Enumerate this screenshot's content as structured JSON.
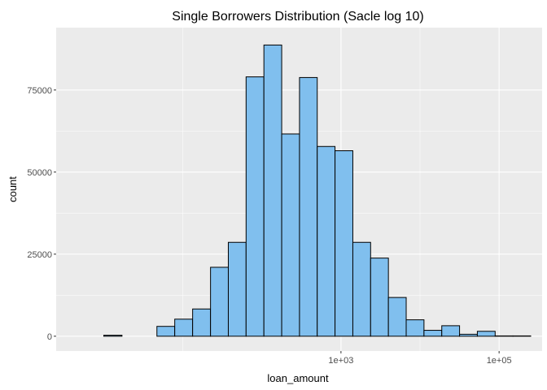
{
  "chart_data": {
    "type": "bar",
    "title": "Single Borrowers Distribution (Sacle log 10)",
    "xlabel": "loan_amount",
    "ylabel": "count",
    "x_scale": "log10",
    "xlim": [
      0.25,
      350000
    ],
    "ylim": [
      -4500,
      94000
    ],
    "grid": true,
    "x_ticks": [
      {
        "value": 1000,
        "label": "1e+03"
      },
      {
        "value": 100000,
        "label": "1e+05"
      }
    ],
    "y_ticks": [
      {
        "value": 0,
        "label": "0"
      },
      {
        "value": 25000,
        "label": "25000"
      },
      {
        "value": 50000,
        "label": "50000"
      },
      {
        "value": 75000,
        "label": "75000"
      }
    ],
    "bins": [
      {
        "x0": 1.0,
        "x1": 1.7,
        "count": 300
      },
      {
        "x0": 1.7,
        "x1": 2.8,
        "count": 0
      },
      {
        "x0": 2.8,
        "x1": 4.7,
        "count": 0
      },
      {
        "x0": 4.7,
        "x1": 7.9,
        "count": 3000
      },
      {
        "x0": 7.9,
        "x1": 13.3,
        "count": 5200
      },
      {
        "x0": 13.3,
        "x1": 22.4,
        "count": 8300
      },
      {
        "x0": 22.4,
        "x1": 37.6,
        "count": 21000
      },
      {
        "x0": 37.6,
        "x1": 63.1,
        "count": 28600
      },
      {
        "x0": 63.1,
        "x1": 106,
        "count": 79000
      },
      {
        "x0": 106,
        "x1": 178,
        "count": 88700
      },
      {
        "x0": 178,
        "x1": 299,
        "count": 61600
      },
      {
        "x0": 299,
        "x1": 501,
        "count": 78800
      },
      {
        "x0": 501,
        "x1": 841,
        "count": 57800
      },
      {
        "x0": 841,
        "x1": 1413,
        "count": 56500
      },
      {
        "x0": 1413,
        "x1": 2371,
        "count": 28600
      },
      {
        "x0": 2371,
        "x1": 3981,
        "count": 23800
      },
      {
        "x0": 3981,
        "x1": 6683,
        "count": 11800
      },
      {
        "x0": 6683,
        "x1": 11220,
        "count": 5000
      },
      {
        "x0": 11220,
        "x1": 18836,
        "count": 1800
      },
      {
        "x0": 18836,
        "x1": 31623,
        "count": 3200
      },
      {
        "x0": 31623,
        "x1": 53088,
        "count": 600
      },
      {
        "x0": 53088,
        "x1": 89125,
        "count": 1500
      },
      {
        "x0": 89125,
        "x1": 149624,
        "count": 100
      },
      {
        "x0": 149624,
        "x1": 251189,
        "count": 100
      }
    ],
    "colors": {
      "panel_bg": "#ebebeb",
      "grid_major": "#ffffff",
      "bar_fill": "#80bfee",
      "bar_outline": "#000000"
    }
  }
}
